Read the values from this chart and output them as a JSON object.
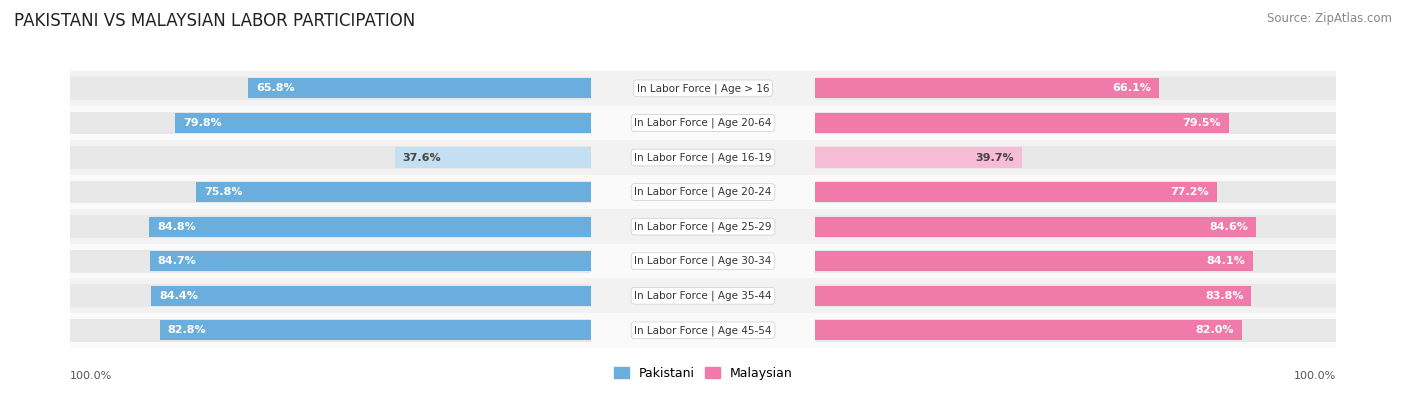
{
  "title": "PAKISTANI VS MALAYSIAN LABOR PARTICIPATION",
  "source": "Source: ZipAtlas.com",
  "categories": [
    "In Labor Force | Age > 16",
    "In Labor Force | Age 20-64",
    "In Labor Force | Age 16-19",
    "In Labor Force | Age 20-24",
    "In Labor Force | Age 25-29",
    "In Labor Force | Age 30-34",
    "In Labor Force | Age 35-44",
    "In Labor Force | Age 45-54"
  ],
  "pakistani_values": [
    65.8,
    79.8,
    37.6,
    75.8,
    84.8,
    84.7,
    84.4,
    82.8
  ],
  "malaysian_values": [
    66.1,
    79.5,
    39.7,
    77.2,
    84.6,
    84.1,
    83.8,
    82.0
  ],
  "pakistani_color_strong": "#6aaede",
  "pakistani_color_light": "#c5dff2",
  "malaysian_color_strong": "#f07aaa",
  "malaysian_color_light": "#f7bcd6",
  "track_color": "#e8e8e8",
  "row_bg_even": "#f2f2f2",
  "row_bg_odd": "#fafafa",
  "max_value": 100.0,
  "legend_pakistani": "Pakistani",
  "legend_malaysian": "Malaysian",
  "title_fontsize": 12,
  "source_fontsize": 8.5,
  "bar_label_fontsize": 8,
  "category_fontsize": 7.5,
  "legend_fontsize": 9,
  "light_rows": [
    2
  ]
}
